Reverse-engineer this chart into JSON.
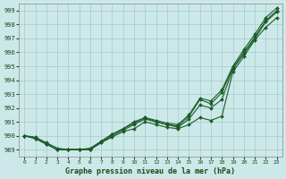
{
  "title": "Graphe pression niveau de la mer (hPa)",
  "background_color": "#cde8e8",
  "grid_color": "#a0cccc",
  "line_color": "#1a5c28",
  "ylim": [
    988.5,
    999.5
  ],
  "xlim": [
    -0.5,
    23.5
  ],
  "yticks": [
    989,
    990,
    991,
    992,
    993,
    994,
    995,
    996,
    997,
    998,
    999
  ],
  "xticks": [
    0,
    1,
    2,
    3,
    4,
    5,
    6,
    7,
    8,
    9,
    10,
    11,
    12,
    13,
    14,
    15,
    16,
    17,
    18,
    19,
    20,
    21,
    22,
    23
  ],
  "series": [
    [
      990.0,
      989.9,
      989.5,
      989.1,
      989.0,
      989.0,
      989.0,
      989.5,
      989.9,
      990.3,
      990.6,
      991.1,
      990.8,
      990.7,
      990.6,
      990.8,
      991.2,
      991.1,
      991.5,
      994.8,
      995.9,
      997.0,
      998.0,
      998.7
    ],
    [
      990.0,
      989.8,
      989.4,
      989.1,
      989.0,
      989.0,
      989.0,
      989.5,
      990.0,
      990.5,
      990.9,
      991.3,
      991.0,
      990.8,
      990.7,
      991.3,
      992.5,
      992.3,
      993.0,
      994.9,
      996.0,
      997.1,
      998.3,
      999.0
    ],
    [
      990.0,
      989.8,
      989.5,
      989.1,
      989.0,
      989.0,
      989.0,
      989.6,
      990.1,
      990.5,
      990.9,
      991.2,
      991.0,
      990.8,
      990.7,
      991.4,
      992.6,
      992.5,
      993.2,
      994.9,
      996.1,
      997.2,
      998.4,
      999.1
    ],
    [
      990.0,
      989.9,
      989.4,
      989.2,
      989.0,
      989.0,
      989.1,
      989.6,
      990.0,
      990.4,
      990.6,
      991.1,
      991.0,
      990.7,
      990.6,
      991.0,
      992.0,
      992.0,
      992.5,
      994.8,
      995.8,
      996.9,
      998.1,
      998.8
    ]
  ]
}
